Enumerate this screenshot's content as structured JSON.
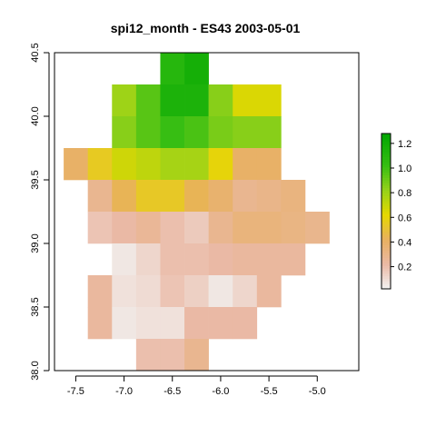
{
  "chart_data": {
    "type": "heatmap",
    "title": "spi12_month - ES43 2003-05-01",
    "xlabel": "",
    "ylabel": "",
    "xlim": [
      -7.72,
      -4.57
    ],
    "ylim": [
      38.0,
      40.5
    ],
    "x_ticks": [
      "-7.5",
      "-7.0",
      "-6.5",
      "-6.0",
      "-5.5",
      "-5.0"
    ],
    "y_ticks": [
      "38.0",
      "38.5",
      "39.0",
      "39.5",
      "40.0",
      "40.5"
    ],
    "x_tick_values": [
      -7.5,
      -7.0,
      -6.5,
      -6.0,
      -5.5,
      -5.0
    ],
    "y_tick_values": [
      38.0,
      38.5,
      39.0,
      39.5,
      40.0,
      40.5
    ],
    "grid": false,
    "cell_size_deg": 0.25,
    "cell_grid_x0": -7.625,
    "cell_grid_y_top": 40.5,
    "rows": [
      [
        null,
        null,
        null,
        null,
        1.1,
        1.18,
        null,
        null,
        null,
        null,
        null
      ],
      [
        null,
        null,
        0.8,
        0.95,
        1.15,
        1.15,
        0.85,
        0.65,
        0.65,
        null,
        null
      ],
      [
        null,
        null,
        0.85,
        0.95,
        1.02,
        0.98,
        0.88,
        0.85,
        0.85,
        null,
        null
      ],
      [
        0.4,
        0.55,
        0.68,
        0.72,
        0.78,
        0.78,
        0.6,
        0.4,
        0.4,
        null,
        null
      ],
      [
        null,
        0.28,
        0.44,
        0.54,
        0.54,
        0.44,
        0.38,
        0.28,
        0.3,
        0.33,
        null
      ],
      [
        null,
        0.18,
        0.22,
        0.26,
        0.2,
        0.16,
        0.28,
        0.34,
        0.34,
        0.32,
        0.29
      ],
      [
        null,
        null,
        0.06,
        0.12,
        0.2,
        0.2,
        0.22,
        0.24,
        0.24,
        0.24,
        null
      ],
      [
        null,
        0.24,
        0.08,
        0.1,
        0.18,
        0.14,
        0.06,
        0.12,
        0.24,
        null,
        null
      ],
      [
        null,
        0.24,
        0.06,
        0.08,
        0.08,
        0.22,
        0.22,
        0.22,
        null,
        null,
        null
      ],
      [
        null,
        null,
        null,
        0.2,
        0.2,
        0.28,
        null,
        null,
        null,
        null,
        null
      ]
    ],
    "legend": {
      "placement": "right",
      "min": 0.02,
      "max": 1.28,
      "ticks": [
        "0.2",
        "0.4",
        "0.6",
        "0.8",
        "1.0",
        "1.2"
      ],
      "tick_values": [
        0.2,
        0.4,
        0.6,
        0.8,
        1.0,
        1.2
      ]
    },
    "colormap": {
      "name": "terrain-reversed",
      "stops": [
        {
          "v": 0.02,
          "color": "#F2F2F2"
        },
        {
          "v": 0.22,
          "color": "#EAB9A5"
        },
        {
          "v": 0.42,
          "color": "#E8B060"
        },
        {
          "v": 0.62,
          "color": "#E6D800"
        },
        {
          "v": 0.82,
          "color": "#96D21A"
        },
        {
          "v": 1.02,
          "color": "#37BE13"
        },
        {
          "v": 1.28,
          "color": "#00A600"
        }
      ]
    }
  }
}
